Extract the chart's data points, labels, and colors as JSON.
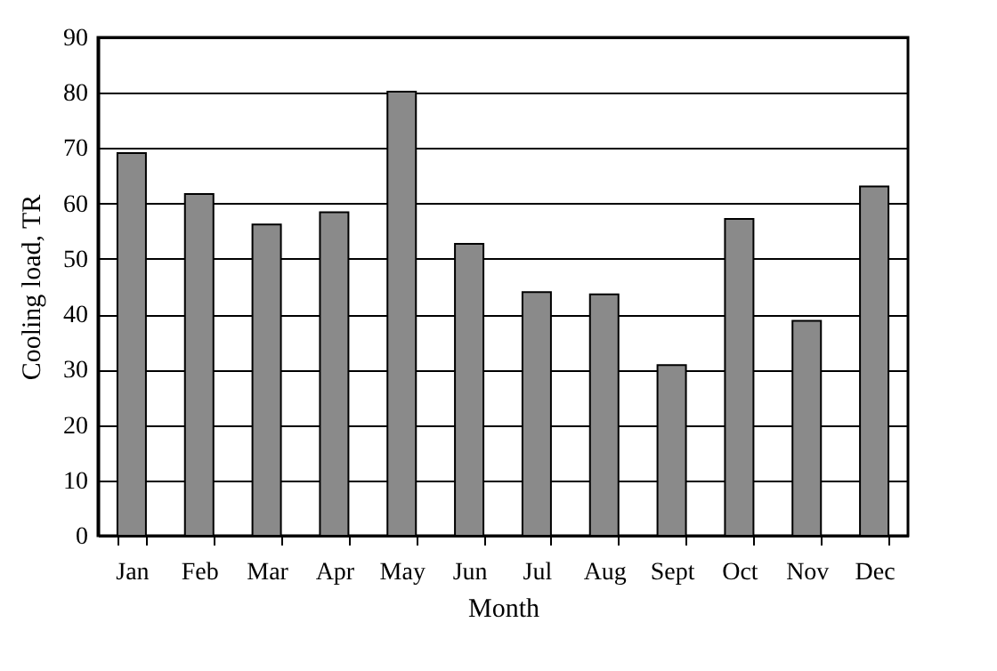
{
  "chart_data": {
    "type": "bar",
    "xlabel": "Month",
    "ylabel": "Cooling load, TR",
    "categories": [
      "Jan",
      "Feb",
      "Mar",
      "Apr",
      "May",
      "Jun",
      "Jul",
      "Aug",
      "Sept",
      "Oct",
      "Nov",
      "Dec"
    ],
    "values": [
      69.1,
      61.7,
      56.2,
      58.4,
      80.2,
      52.7,
      44.0,
      43.6,
      30.8,
      57.2,
      38.8,
      63.1
    ],
    "color": "#8a8a8a",
    "ylim": [
      0,
      90
    ],
    "yticks": [
      0,
      10,
      20,
      30,
      40,
      50,
      60,
      70,
      80,
      90
    ],
    "grid": "y"
  }
}
